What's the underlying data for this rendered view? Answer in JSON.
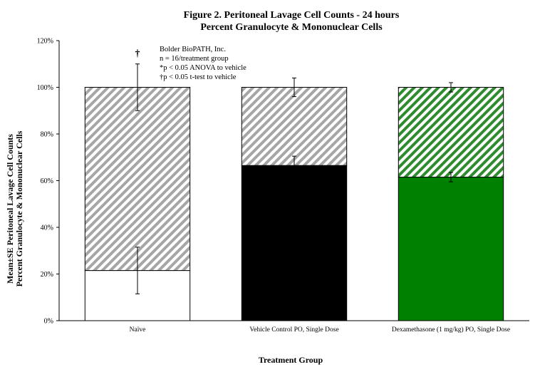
{
  "chart_data": {
    "type": "bar",
    "stacked": true,
    "title": [
      "Figure 2. Peritoneal Lavage Cell Counts - 24 hours",
      "Percent Granulocyte & Mononuclear Cells"
    ],
    "xlabel": "Treatment Group",
    "ylabel": [
      "Mean±SE Peritoneal Lavage Cell Counts",
      "Percent Granulocyte & Mononuclear Cells"
    ],
    "ylim": [
      0,
      120
    ],
    "yticks": [
      "0%",
      "20%",
      "40%",
      "60%",
      "80%",
      "100%",
      "120%"
    ],
    "categories": [
      "Naïve",
      "Vehicle Control PO, Single Dose",
      "Dexamethasone (1 mg/kg) PO, Single Dose"
    ],
    "series": [
      {
        "segment": "lower",
        "fill": "solid",
        "colors": [
          "#ffffff",
          "#000000",
          "#008000"
        ],
        "values": [
          21.5,
          66.5,
          61.5
        ],
        "error": [
          10,
          4,
          2
        ]
      },
      {
        "segment": "upper",
        "fill": "diagonal-hatch",
        "colors": [
          "#a6a6a6",
          "#a6a6a6",
          "#2e8b2e"
        ],
        "values": [
          78.5,
          33.5,
          38.5
        ],
        "error": [
          10,
          4,
          2
        ]
      }
    ],
    "annotations": {
      "dagger_marker": "†",
      "legend_text": [
        "Bolder BioPATH, Inc.",
        "n = 16/treatment group",
        "*p < 0.05 ANOVA to vehicle",
        "†p < 0.05 t-test to vehicle"
      ]
    },
    "grid": false,
    "legend": "none"
  }
}
